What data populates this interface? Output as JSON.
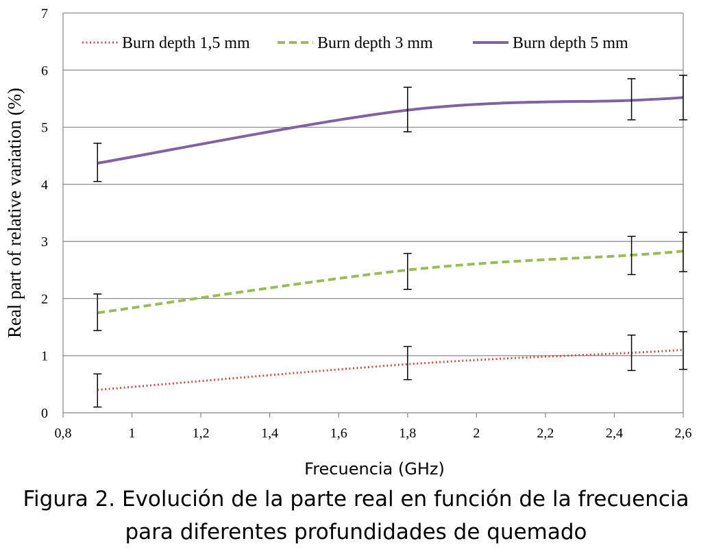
{
  "chart_data": {
    "type": "line",
    "xlabel": "Frecuencia (GHz)",
    "ylabel": "Real part of relative variation (%)",
    "xlim": [
      0.8,
      2.6
    ],
    "ylim": [
      0,
      7
    ],
    "xticks": [
      0.8,
      1,
      1.2,
      1.4,
      1.6,
      1.8,
      2,
      2.2,
      2.4,
      2.6
    ],
    "xtick_labels": [
      "0,8",
      "1",
      "1,2",
      "1,4",
      "1,6",
      "1,8",
      "2",
      "2,2",
      "2,4",
      "2,6"
    ],
    "yticks": [
      0,
      1,
      2,
      3,
      4,
      5,
      6,
      7
    ],
    "ytick_labels": [
      "0",
      "1",
      "2",
      "3",
      "4",
      "5",
      "6",
      "7"
    ],
    "grid": "horizontal",
    "legend_position": "top",
    "series": [
      {
        "name": "Burn depth 1,5 mm",
        "color": "#c0504d",
        "style": "dotted",
        "x": [
          0.9,
          1.8,
          2.45,
          2.6
        ],
        "y": [
          0.4,
          0.85,
          1.05,
          1.1
        ],
        "err_low": [
          0.1,
          0.58,
          0.74,
          0.76
        ],
        "err_high": [
          0.68,
          1.16,
          1.36,
          1.42
        ]
      },
      {
        "name": "Burn depth 3 mm",
        "color": "#9bbb59",
        "style": "dashed",
        "x": [
          0.9,
          1.8,
          2.45,
          2.6
        ],
        "y": [
          1.75,
          2.5,
          2.76,
          2.83
        ],
        "err_low": [
          1.44,
          2.16,
          2.42,
          2.47
        ],
        "err_high": [
          2.08,
          2.79,
          3.09,
          3.16
        ]
      },
      {
        "name": "Burn depth 5 mm",
        "color": "#8064a2",
        "style": "solid",
        "x": [
          0.9,
          1.8,
          2.45,
          2.6
        ],
        "y": [
          4.37,
          5.3,
          5.47,
          5.52
        ],
        "err_low": [
          4.05,
          4.92,
          5.13,
          5.13
        ],
        "err_high": [
          4.72,
          5.7,
          5.85,
          5.91
        ]
      }
    ]
  },
  "caption": {
    "line1": "Figura 2. Evolución de la parte real en función de la frecuencia",
    "line2": "para diferentes profundidades de quemado"
  }
}
